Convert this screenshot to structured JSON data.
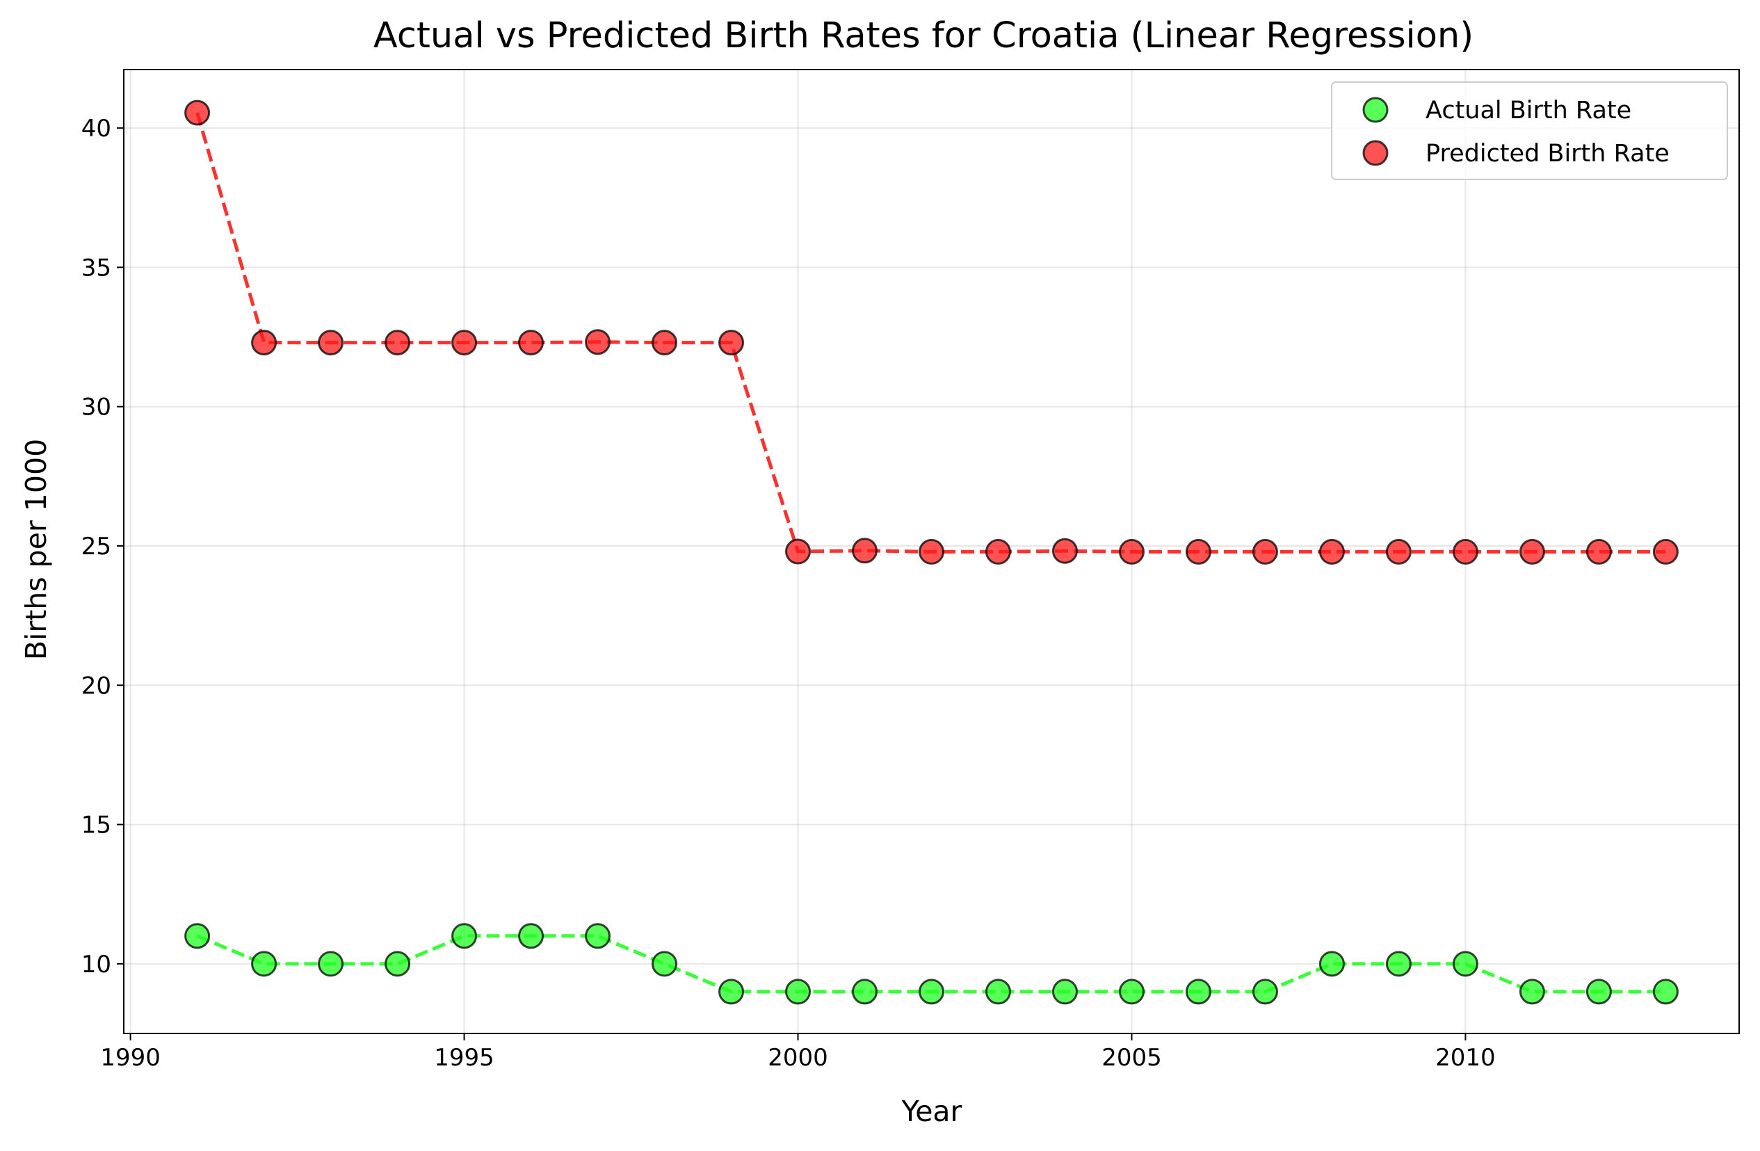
{
  "chart_data": {
    "type": "line",
    "title": "Actual vs Predicted Birth Rates for Croatia (Linear Regression)",
    "xlabel": "Year",
    "ylabel": "Births per 1000",
    "xlim": [
      1989.9,
      2014.1
    ],
    "ylim": [
      7.5,
      42.1
    ],
    "xticks": [
      1990,
      1995,
      2000,
      2005,
      2010
    ],
    "yticks": [
      10,
      15,
      20,
      25,
      30,
      35,
      40
    ],
    "grid": true,
    "legend_position": "top-right",
    "x": [
      1991,
      1992,
      1993,
      1994,
      1995,
      1996,
      1997,
      1998,
      1999,
      2000,
      2001,
      2002,
      2003,
      2004,
      2005,
      2006,
      2007,
      2008,
      2009,
      2010,
      2011,
      2012,
      2013
    ],
    "series": [
      {
        "name": "Actual Birth Rate",
        "color": "#22ff22",
        "values": [
          11,
          10,
          10,
          10,
          11,
          11,
          11,
          10,
          9,
          9,
          9,
          9,
          9,
          9,
          9,
          9,
          9,
          10,
          10,
          10,
          9,
          9,
          9
        ]
      },
      {
        "name": "Predicted Birth Rate",
        "color": "#ff1a1a",
        "values": [
          40.55,
          32.3,
          32.3,
          32.3,
          32.3,
          32.3,
          32.32,
          32.3,
          32.3,
          24.8,
          24.83,
          24.79,
          24.79,
          24.82,
          24.79,
          24.79,
          24.79,
          24.79,
          24.79,
          24.79,
          24.79,
          24.79,
          24.79
        ]
      }
    ]
  }
}
